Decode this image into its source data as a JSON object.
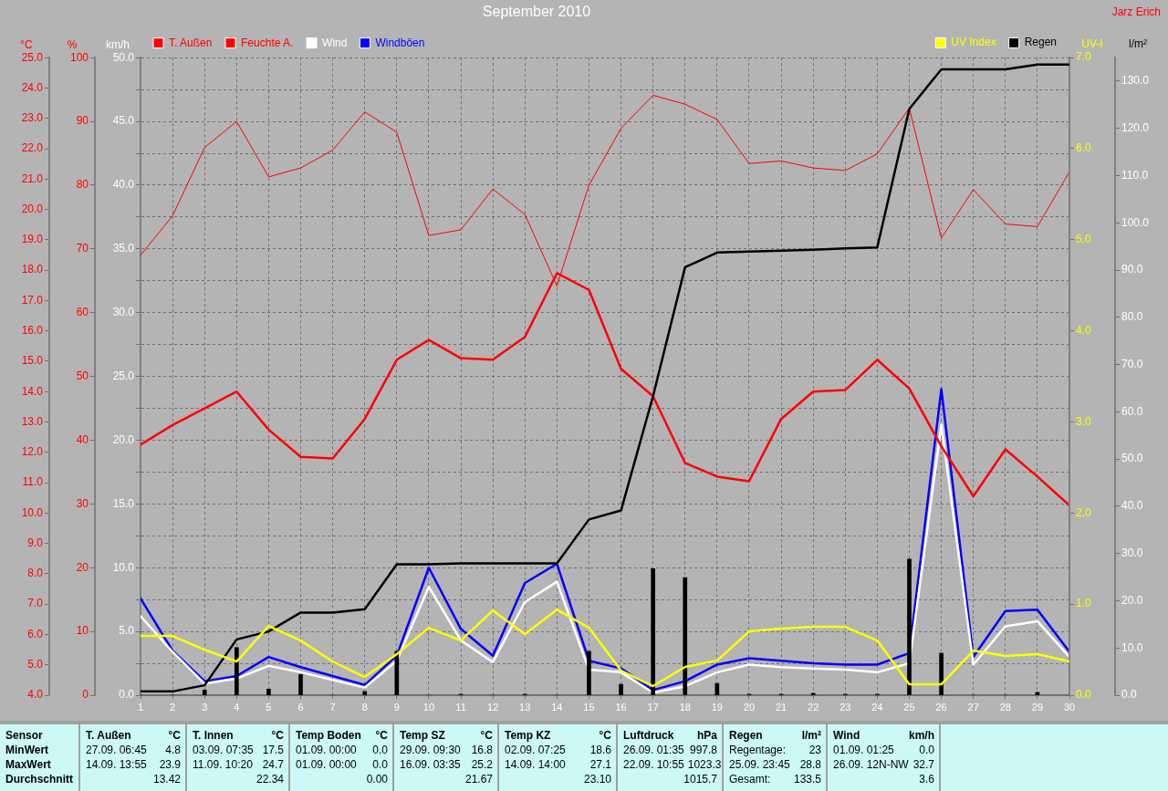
{
  "chart_data": [
    {
      "type": "line",
      "title": "September 2010",
      "x": [
        1,
        2,
        3,
        4,
        5,
        6,
        7,
        8,
        9,
        10,
        11,
        12,
        13,
        14,
        15,
        16,
        17,
        18,
        19,
        20,
        21,
        22,
        23,
        24,
        25,
        26,
        27,
        28,
        29,
        30
      ],
      "xlim": [
        1,
        30
      ],
      "xticks": [
        1,
        2,
        3,
        4,
        5,
        6,
        7,
        8,
        9,
        10,
        11,
        12,
        13,
        14,
        15,
        16,
        17,
        18,
        19,
        20,
        21,
        22,
        23,
        24,
        25,
        26,
        27,
        28,
        29,
        30
      ],
      "ylabel": "°C",
      "ylim": [
        4,
        25
      ],
      "yticks": [
        {
          "value": 4,
          "label": "4.0"
        },
        {
          "value": 5,
          "label": "5.0"
        },
        {
          "value": 6,
          "label": "6.0"
        },
        {
          "value": 7,
          "label": "7.0"
        },
        {
          "value": 8,
          "label": "8.0"
        },
        {
          "value": 9,
          "label": "9.0"
        },
        {
          "value": 10,
          "label": "10.0"
        },
        {
          "value": 11,
          "label": "11.0"
        },
        {
          "value": 12,
          "label": "12.0"
        },
        {
          "value": 13,
          "label": "13.0"
        },
        {
          "value": 14,
          "label": "14.0"
        },
        {
          "value": 15,
          "label": "15.0"
        },
        {
          "value": 16,
          "label": "16.0"
        },
        {
          "value": 17,
          "label": "17.0"
        },
        {
          "value": 18,
          "label": "18.0"
        },
        {
          "value": 19,
          "label": "19.0"
        },
        {
          "value": 20,
          "label": "20.0"
        },
        {
          "value": 21,
          "label": "21.0"
        },
        {
          "value": 22,
          "label": "22.0"
        },
        {
          "value": 23,
          "label": "23.0"
        },
        {
          "value": 24,
          "label": "24.0"
        },
        {
          "value": 25,
          "label": "25.0"
        }
      ],
      "y2label": "%",
      "y2lim": [
        0,
        100
      ],
      "y2ticks": [
        0,
        10,
        20,
        30,
        40,
        50,
        60,
        70,
        80,
        90,
        100
      ],
      "y3label": "km/h",
      "y3lim": [
        0,
        50
      ],
      "y3ticks": [
        {
          "value": 0,
          "label": "0.0"
        },
        {
          "value": 2.5,
          "label": null
        },
        {
          "value": 5,
          "label": "5.0"
        },
        {
          "value": 7.5,
          "label": null
        },
        {
          "value": 10,
          "label": "10.0"
        },
        {
          "value": 12.5,
          "label": null
        },
        {
          "value": 15,
          "label": "15.0"
        },
        {
          "value": 17.5,
          "label": null
        },
        {
          "value": 20,
          "label": "20.0"
        },
        {
          "value": 22.5,
          "label": null
        },
        {
          "value": 25,
          "label": "25.0"
        },
        {
          "value": 27.5,
          "label": null
        },
        {
          "value": 30,
          "label": "30.0"
        },
        {
          "value": 32.5,
          "label": null
        },
        {
          "value": 35,
          "label": "35.0"
        },
        {
          "value": 37.5,
          "label": null
        },
        {
          "value": 40,
          "label": "40.0"
        },
        {
          "value": 42.5,
          "label": null
        },
        {
          "value": 45,
          "label": "45.0"
        },
        {
          "value": 47.5,
          "label": null
        },
        {
          "value": 50,
          "label": "50.0"
        }
      ],
      "grid": true,
      "legend": "top left",
      "series": [
        {
          "name": "T. Außen",
          "color": "#ff0000",
          "values": [
            12.25,
            12.9,
            13.45,
            14.0,
            12.75,
            11.85,
            11.8,
            13.1,
            15.05,
            15.7,
            15.1,
            15.05,
            15.8,
            17.9,
            17.35,
            14.75,
            13.85,
            11.65,
            11.2,
            11.05,
            13.1,
            14.0,
            14.05,
            15.05,
            14.1,
            12.2,
            10.55,
            12.1,
            11.2,
            10.25
          ]
        },
        {
          "name": "Feuchte A.",
          "color": "#ff0000",
          "axis": "y2",
          "values": [
            69,
            75.2,
            85.9,
            90,
            81.3,
            82.7,
            85.5,
            91.5,
            88.3,
            72.1,
            73,
            79.4,
            75.4,
            64.2,
            80,
            88.9,
            94.1,
            92.7,
            90.3,
            83.4,
            83.8,
            82.7,
            82.3,
            84.9,
            92.1,
            71.7,
            79.3,
            73.9,
            73.5,
            82.1
          ]
        },
        {
          "name": "Wind",
          "color": "#ffffff",
          "axis": "y3",
          "values": [
            6.2,
            3.4,
            0.9,
            1.3,
            2.3,
            1.8,
            1.2,
            0.6,
            2.7,
            8.5,
            4.3,
            2.6,
            7.3,
            8.9,
            2.0,
            1.8,
            0.2,
            0.7,
            1.8,
            2.4,
            2.2,
            2.1,
            2.0,
            1.8,
            2.5,
            21.2,
            2.4,
            5.4,
            5.8,
            3.0
          ]
        },
        {
          "name": "Windböen",
          "color": "#0000ff",
          "axis": "y3",
          "values": [
            7.6,
            3.5,
            1.1,
            1.5,
            3.0,
            2.2,
            1.5,
            0.8,
            3.1,
            10.0,
            5.2,
            3.1,
            8.8,
            10.3,
            2.7,
            2.1,
            0.4,
            1.1,
            2.4,
            2.9,
            2.7,
            2.5,
            2.4,
            2.4,
            3.3,
            24.0,
            3.0,
            6.6,
            6.7,
            3.4
          ]
        }
      ],
      "annotations": [
        "Jarz Erich",
        "Sensor",
        "MinWert",
        "MaxWert",
        "Durchschnitt",
        "T. Außen °C",
        "27.09. 06:45 4.8",
        "14.09. 13:55 23.9",
        "13.42",
        "T. Innen °C",
        "03.09. 07:35 17.5",
        "11.09. 10:20 24.7",
        "22.34",
        "Temp Boden °C",
        "01.09. 00:00 0.0",
        "01.09. 00:00 0.0",
        "0.00",
        "Temp SZ °C",
        "29.09. 09:30 16.8",
        "16.09. 03:35 25.2",
        "21.67",
        "Temp KZ °C",
        "02.09. 07:25 18.6",
        "14.09. 14:00 27.1",
        "23.10",
        "Luftdruck hPa",
        "26.09. 01:35 997.8",
        "22.09. 10:55 1023.3",
        "1015.7",
        "Regen l/m²",
        "Regentage: 23",
        "25.09. 23:45 28.8",
        "Gesamt: 133.5",
        "Wind km/h",
        "01.09. 01:25 0.0",
        "26.09. 12N-NW 32.7",
        "3.6"
      ]
    },
    {
      "type": "line",
      "x": [
        1,
        2,
        3,
        4,
        5,
        6,
        7,
        8,
        9,
        10,
        11,
        12,
        13,
        14,
        15,
        16,
        17,
        18,
        19,
        20,
        21,
        22,
        23,
        24,
        25,
        26,
        27,
        28,
        29,
        30
      ],
      "xlim": [
        1,
        30
      ],
      "xticks": [
        1,
        2,
        3,
        4,
        5,
        6,
        7,
        8,
        9,
        10,
        11,
        12,
        13,
        14,
        15,
        16,
        17,
        18,
        19,
        20,
        21,
        22,
        23,
        24,
        25,
        26,
        27,
        28,
        29,
        30
      ],
      "tick_labels": "y",
      "ylabel": "UV-I",
      "ylim": [
        0,
        7
      ],
      "yticks": [
        {
          "value": 0,
          "label": "0.0"
        },
        {
          "value": 1,
          "label": "1.0"
        },
        {
          "value": 2,
          "label": "2.0"
        },
        {
          "value": 3,
          "label": "3.0"
        },
        {
          "value": 4,
          "label": "4.0"
        },
        {
          "value": 5,
          "label": "5.0"
        },
        {
          "value": 6,
          "label": "6.0"
        },
        {
          "value": 7,
          "label": "7.0"
        }
      ],
      "y2label": "l/m²",
      "y2lim": [
        0,
        135
      ],
      "y2ticks": [
        {
          "value": 0,
          "label": "0.0"
        },
        {
          "value": 10,
          "label": "10.0"
        },
        {
          "value": 20,
          "label": "20.0"
        },
        {
          "value": 30,
          "label": "30.0"
        },
        {
          "value": 40,
          "label": "40.0"
        },
        {
          "value": 50,
          "label": "50.0"
        },
        {
          "value": 60,
          "label": "60.0"
        },
        {
          "value": 70,
          "label": "70.0"
        },
        {
          "value": 80,
          "label": "80.0"
        },
        {
          "value": 90,
          "label": "90.0"
        },
        {
          "value": 100,
          "label": "100.0"
        },
        {
          "value": 110,
          "label": "110.0"
        },
        {
          "value": 120,
          "label": "120.0"
        },
        {
          "value": 130,
          "label": "130.0"
        }
      ],
      "legend": "top right",
      "series": [
        {
          "name": "UV Index",
          "color": "#ffff00",
          "values": [
            0.65,
            0.65,
            0.5,
            0.37,
            0.76,
            0.6,
            0.37,
            0.2,
            0.45,
            0.74,
            0.6,
            0.93,
            0.67,
            0.94,
            0.74,
            0.27,
            0.1,
            0.31,
            0.38,
            0.7,
            0.73,
            0.75,
            0.75,
            0.6,
            0.12,
            0.12,
            0.49,
            0.43,
            0.45,
            0.37
          ]
        },
        {
          "name": "Regen",
          "color": "#000000",
          "axis": "y2",
          "values": [
            0.8,
            0.8,
            2.1,
            11.8,
            13.5,
            17.5,
            17.5,
            18.2,
            27.7,
            27.7,
            27.9,
            27.9,
            27.9,
            27.9,
            37.2,
            39.1,
            63.3,
            90.6,
            93.7,
            93.9,
            94.1,
            94.3,
            94.6,
            94.8,
            124.1,
            132.5,
            132.5,
            132.5,
            133.5,
            133.5
          ]
        },
        {
          "type": "bar",
          "color": "#000000",
          "axis": "y2",
          "values": [
            0,
            0,
            1.1,
            10.1,
            1.3,
            4.4,
            0,
            0.8,
            9.3,
            0,
            0.2,
            0,
            0.2,
            0,
            9.3,
            2.3,
            26.8,
            24.9,
            2.5,
            0.2,
            0.2,
            0.4,
            0.2,
            0.2,
            28.8,
            8.9,
            0,
            0,
            0.6,
            0
          ]
        }
      ]
    }
  ]
}
